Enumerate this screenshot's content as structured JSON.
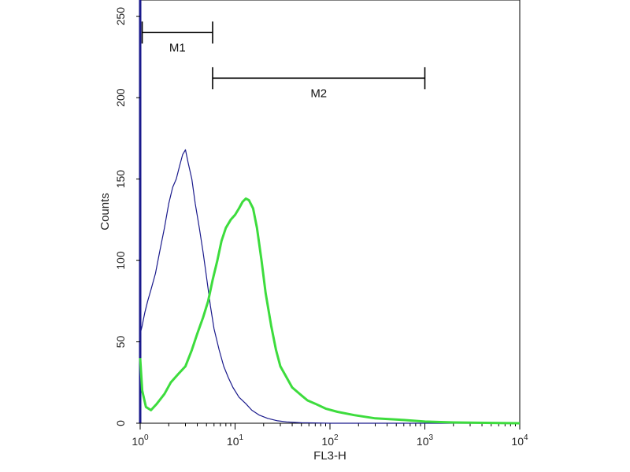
{
  "chart_data": {
    "type": "line",
    "xlabel": "FL3-H",
    "ylabel": "Counts",
    "x_scale": "log",
    "xlim": [
      1,
      10000
    ],
    "ylim": [
      0,
      260
    ],
    "y_ticks": [
      "0",
      "50",
      "100",
      "150",
      "200",
      "250"
    ],
    "x_ticks": [
      {
        "base": "10",
        "exp": "0"
      },
      {
        "base": "10",
        "exp": "1"
      },
      {
        "base": "10",
        "exp": "2"
      },
      {
        "base": "10",
        "exp": "3"
      },
      {
        "base": "10",
        "exp": "4"
      }
    ],
    "markers": [
      {
        "label": "M1",
        "x_start": 1.05,
        "x_end": 5.8,
        "y": 240
      },
      {
        "label": "M2",
        "x_start": 5.8,
        "x_end": 1000,
        "y": 212
      }
    ],
    "series": [
      {
        "color": "#1a1a8c",
        "x": [
          1.0,
          1.05,
          1.12,
          1.2,
          1.3,
          1.45,
          1.6,
          1.8,
          2.0,
          2.2,
          2.4,
          2.6,
          2.8,
          3.0,
          3.2,
          3.5,
          3.8,
          4.2,
          4.6,
          5.0,
          5.5,
          6.0,
          6.8,
          7.6,
          8.5,
          9.5,
          11,
          13,
          15,
          18,
          22,
          28,
          35,
          50,
          100,
          1000,
          10000
        ],
        "y": [
          55,
          60,
          68,
          75,
          82,
          92,
          105,
          120,
          135,
          145,
          150,
          158,
          165,
          168,
          160,
          150,
          135,
          120,
          105,
          90,
          72,
          58,
          45,
          35,
          28,
          22,
          16,
          12,
          8,
          5,
          3,
          1.5,
          0.8,
          0.3,
          0,
          0,
          0
        ]
      },
      {
        "color": "#3ddc3d",
        "x": [
          1.0,
          1.05,
          1.15,
          1.3,
          1.5,
          1.8,
          2.1,
          2.5,
          3.0,
          3.5,
          4.0,
          4.6,
          5.2,
          5.8,
          6.5,
          7.2,
          8.0,
          9.0,
          10,
          11,
          12,
          13,
          14,
          15.5,
          17,
          19,
          21,
          24,
          27,
          30,
          35,
          40,
          48,
          58,
          70,
          90,
          120,
          180,
          300,
          600,
          1000,
          2000,
          10000
        ],
        "y": [
          40,
          20,
          10,
          8,
          12,
          18,
          25,
          30,
          35,
          45,
          55,
          65,
          75,
          88,
          100,
          112,
          120,
          125,
          128,
          132,
          136,
          138,
          137,
          132,
          120,
          100,
          80,
          60,
          45,
          35,
          28,
          22,
          18,
          14,
          12,
          9,
          7,
          5,
          3,
          2,
          1,
          0.5,
          0
        ]
      }
    ]
  }
}
